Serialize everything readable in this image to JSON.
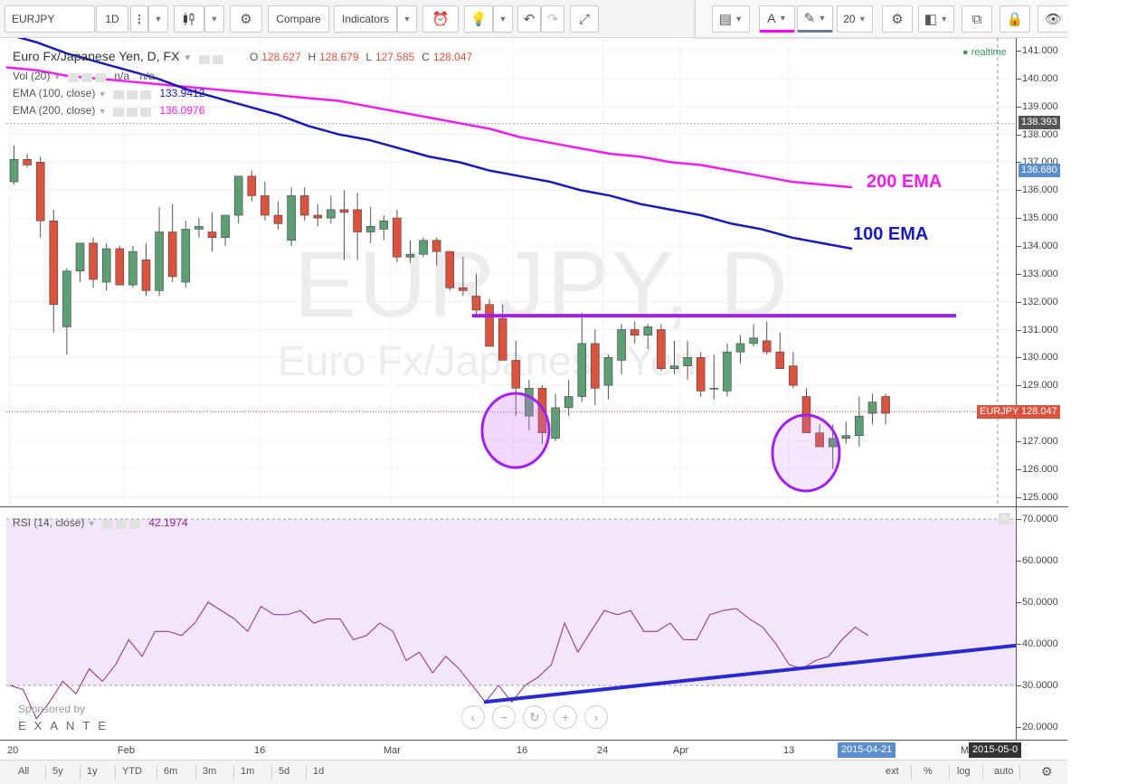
{
  "toolbar": {
    "symbol": "EURJPY",
    "interval": "1D",
    "compare_label": "Compare",
    "indicators_label": "Indicators"
  },
  "drawing_toolbar": {
    "font_size": "20",
    "text_color": "#ff00ff",
    "line_color": "#6b7c8f"
  },
  "main_legend": {
    "title": "Euro Fx/Japanese Yen, D, FX",
    "o_label": "O",
    "o_value": "128.627",
    "h_label": "H",
    "h_value": "128.679",
    "l_label": "L",
    "l_value": "127.585",
    "c_label": "C",
    "c_value": "128.047",
    "vol_label": "Vol (20)",
    "vol_v1": "n/a",
    "vol_v2": "n/a",
    "ema100_label": "EMA (100, close)",
    "ema100_value": "133.9412",
    "ema200_label": "EMA (200, close)",
    "ema200_value": "136.0976",
    "realtime": "realtime"
  },
  "watermark": {
    "line1": "EURJPY, D",
    "line2": "Euro Fx/Japanese Yen"
  },
  "annotations": {
    "ema200": "200 EMA",
    "ema100": "100 EMA"
  },
  "colors": {
    "up": "#5e9e74",
    "down": "#d9533e",
    "ema100": "#1a1ab8",
    "ema200": "#ee1fee",
    "purple": "#a020f0",
    "rsi_line": "#8a2b8a",
    "rsi_fill": "#f3e6fa",
    "trend": "#2a2ad0"
  },
  "price_axis": {
    "labels": [
      "141.000",
      "140.000",
      "139.000",
      "138.000",
      "137.000",
      "136.000",
      "135.000",
      "134.000",
      "133.000",
      "132.000",
      "131.000",
      "130.000",
      "129.000",
      "128.000",
      "127.000",
      "126.000",
      "125.000"
    ],
    "boxes": [
      {
        "label": "138.393",
        "color": "#555555"
      },
      {
        "label": "136.680",
        "color": "#5b8fcc"
      },
      {
        "label": "128.047",
        "color": "#d9533e",
        "prefix": "EURJPY"
      }
    ]
  },
  "rsi": {
    "label": "RSI (14, close)",
    "value": "42.1974",
    "axis_labels": [
      "70.0000",
      "60.0000",
      "50.0000",
      "40.0000",
      "30.0000",
      "20.0000"
    ],
    "upper": 70,
    "lower": 30,
    "values": [
      30,
      29,
      22,
      26,
      31,
      28,
      34,
      31,
      35,
      41,
      37,
      43,
      43,
      42,
      45,
      50,
      48,
      46,
      43,
      49,
      47,
      47,
      48,
      45,
      46,
      46,
      41,
      42,
      45,
      43,
      36,
      38,
      33,
      37,
      34,
      30,
      26,
      30,
      26,
      30,
      32,
      35,
      45,
      38,
      43,
      48,
      47,
      48,
      43,
      43,
      45,
      41,
      41,
      47,
      48,
      48.5,
      46,
      44,
      40,
      35,
      34,
      36,
      37,
      41,
      44,
      42
    ]
  },
  "chart_data": {
    "type": "candlestick",
    "symbol": "EURJPY",
    "timeframe": "D",
    "ylim": [
      124.7,
      141.4
    ],
    "x_ticks": [
      "20",
      "Feb",
      "16",
      "Mar",
      "16",
      "24",
      "Apr",
      "13",
      "2015-04-21",
      "M",
      "2015-05-0"
    ],
    "candles": [
      [
        136.3,
        137.6,
        136.2,
        137.1
      ],
      [
        137.1,
        137.3,
        136.8,
        136.9
      ],
      [
        137.0,
        137.2,
        134.3,
        134.9
      ],
      [
        134.9,
        135.3,
        130.9,
        131.9
      ],
      [
        131.1,
        133.2,
        130.1,
        133.1
      ],
      [
        133.1,
        134.1,
        132.7,
        134.1
      ],
      [
        134.1,
        134.3,
        132.5,
        132.8
      ],
      [
        132.7,
        134.1,
        132.4,
        133.9
      ],
      [
        133.9,
        134.0,
        132.6,
        132.6
      ],
      [
        132.6,
        134.0,
        132.5,
        133.8
      ],
      [
        133.5,
        134.1,
        132.2,
        132.4
      ],
      [
        132.4,
        135.4,
        132.2,
        134.5
      ],
      [
        134.5,
        135.5,
        132.7,
        132.9
      ],
      [
        132.7,
        134.9,
        132.5,
        134.6
      ],
      [
        134.6,
        135.0,
        134.3,
        134.7
      ],
      [
        134.5,
        135.2,
        133.8,
        134.3
      ],
      [
        134.3,
        135.1,
        134.0,
        135.1
      ],
      [
        135.1,
        136.5,
        134.8,
        136.5
      ],
      [
        136.5,
        136.7,
        135.6,
        135.8
      ],
      [
        135.8,
        136.3,
        134.9,
        135.1
      ],
      [
        135.1,
        135.6,
        134.6,
        134.8
      ],
      [
        134.2,
        136.1,
        134.0,
        135.8
      ],
      [
        135.8,
        136.1,
        134.9,
        135.1
      ],
      [
        135.1,
        135.5,
        134.7,
        135.0
      ],
      [
        135.0,
        135.8,
        134.8,
        135.3
      ],
      [
        135.3,
        136.0,
        133.5,
        135.2
      ],
      [
        135.3,
        135.9,
        133.5,
        134.5
      ],
      [
        134.5,
        135.4,
        134.1,
        134.7
      ],
      [
        134.6,
        135.1,
        134.2,
        134.9
      ],
      [
        135.0,
        135.3,
        133.4,
        133.6
      ],
      [
        133.6,
        134.2,
        133.4,
        133.7
      ],
      [
        133.7,
        134.3,
        133.6,
        134.2
      ],
      [
        134.2,
        134.3,
        133.3,
        133.8
      ],
      [
        133.8,
        133.8,
        132.4,
        132.5
      ],
      [
        132.5,
        133.6,
        132.2,
        132.4
      ],
      [
        132.2,
        133.0,
        131.5,
        131.7
      ],
      [
        131.9,
        132.1,
        130.5,
        130.4
      ],
      [
        131.4,
        131.9,
        130.0,
        129.9
      ],
      [
        129.9,
        130.6,
        127.9,
        128.9
      ],
      [
        127.9,
        129.2,
        127.4,
        128.9
      ],
      [
        128.9,
        129.0,
        126.9,
        127.3
      ],
      [
        127.1,
        128.7,
        127.0,
        128.2
      ],
      [
        128.2,
        129.2,
        127.9,
        128.6
      ],
      [
        128.6,
        131.6,
        128.4,
        130.5
      ],
      [
        130.5,
        131.0,
        128.3,
        128.9
      ],
      [
        129.0,
        130.1,
        128.5,
        130.0
      ],
      [
        129.9,
        131.2,
        129.4,
        131.0
      ],
      [
        131.0,
        131.3,
        130.5,
        130.8
      ],
      [
        130.8,
        131.2,
        130.3,
        131.1
      ],
      [
        131.0,
        131.2,
        129.5,
        129.6
      ],
      [
        129.6,
        130.6,
        129.4,
        129.7
      ],
      [
        129.7,
        130.6,
        129.2,
        130.0
      ],
      [
        130.0,
        130.2,
        128.6,
        128.8
      ],
      [
        128.9,
        130.1,
        128.5,
        128.9
      ],
      [
        128.8,
        130.5,
        128.6,
        130.2
      ],
      [
        130.2,
        130.8,
        129.8,
        130.5
      ],
      [
        130.5,
        131.2,
        130.4,
        130.7
      ],
      [
        130.6,
        131.3,
        130.1,
        130.2
      ],
      [
        130.2,
        130.9,
        129.6,
        129.6
      ],
      [
        129.7,
        130.2,
        128.9,
        129.0
      ],
      [
        128.6,
        128.9,
        127.3,
        127.3
      ],
      [
        127.3,
        127.6,
        126.8,
        126.8
      ],
      [
        126.8,
        127.6,
        126.0,
        127.1
      ],
      [
        127.1,
        127.7,
        126.9,
        127.2
      ],
      [
        127.2,
        128.6,
        126.8,
        127.9
      ],
      [
        128.0,
        128.7,
        127.6,
        128.4
      ],
      [
        128.6,
        128.7,
        127.6,
        128.0
      ]
    ],
    "ema100": [
      141.6,
      141.3,
      140.9,
      140.6,
      140.3,
      140.0,
      139.6,
      139.3,
      139.0,
      138.7,
      138.3,
      138.0,
      137.8,
      137.5,
      137.2,
      137.0,
      136.7,
      136.5,
      136.3,
      136.0,
      135.8,
      135.5,
      135.3,
      135.1,
      134.8,
      134.6,
      134.3,
      134.1,
      133.9
    ],
    "ema200": [
      140.4,
      140.3,
      140.1,
      140.0,
      139.9,
      139.8,
      139.7,
      139.6,
      139.5,
      139.4,
      139.3,
      139.2,
      139.0,
      138.8,
      138.6,
      138.4,
      138.2,
      137.9,
      137.7,
      137.5,
      137.3,
      137.2,
      137.0,
      136.9,
      136.7,
      136.5,
      136.3,
      136.2,
      136.1
    ],
    "resistance_level": 131.5
  },
  "x_axis": {
    "labels": [
      {
        "text": "20"
      },
      {
        "text": "Feb"
      },
      {
        "text": "16"
      },
      {
        "text": "Mar"
      },
      {
        "text": "16"
      },
      {
        "text": "24"
      },
      {
        "text": "Apr"
      },
      {
        "text": "13"
      },
      {
        "text": "M"
      }
    ],
    "highlight1": "2015-04-21",
    "highlight2": "2015-05-0"
  },
  "sponsor": {
    "line1": "Sponsored by",
    "line2": "EXANTE"
  },
  "bottom_bar": {
    "ranges": [
      "All",
      "5y",
      "1y",
      "YTD",
      "6m",
      "3m",
      "1m",
      "5d",
      "1d"
    ],
    "right": [
      "ext",
      "%",
      "log",
      "auto"
    ]
  }
}
